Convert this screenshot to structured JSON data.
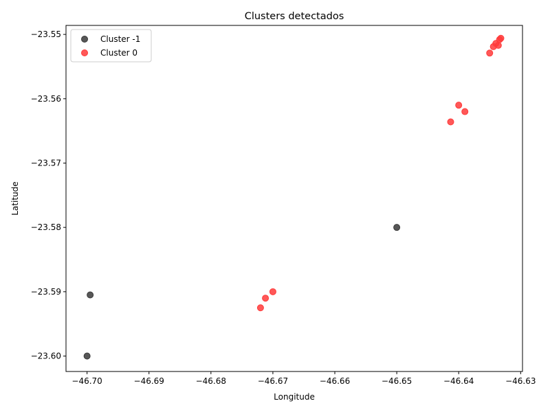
{
  "chart_data": {
    "type": "scatter",
    "title": "Clusters detectados",
    "xlabel": "Longitude",
    "ylabel": "Latitude",
    "xlim": [
      -46.7034,
      -46.6297
    ],
    "ylim": [
      -23.6024,
      -23.5486
    ],
    "xticks": [
      -46.7,
      -46.69,
      -46.68,
      -46.67,
      -46.66,
      -46.65,
      -46.64,
      -46.63
    ],
    "xtick_labels": [
      "−46.70",
      "−46.69",
      "−46.68",
      "−46.67",
      "−46.66",
      "−46.65",
      "−46.64",
      "−46.63"
    ],
    "yticks": [
      -23.55,
      -23.56,
      -23.57,
      -23.58,
      -23.59,
      -23.6
    ],
    "ytick_labels": [
      "−23.55",
      "−23.56",
      "−23.57",
      "−23.58",
      "−23.59",
      "−23.60"
    ],
    "grid": false,
    "legend_position": "top-left",
    "series": [
      {
        "name": "Cluster -1",
        "color": "#3a3a3a",
        "points": [
          {
            "x": -46.6995,
            "y": -23.5905
          },
          {
            "x": -46.7,
            "y": -23.6
          },
          {
            "x": -46.65,
            "y": -23.58
          }
        ]
      },
      {
        "name": "Cluster 0",
        "color": "#ff3b3b",
        "points": [
          {
            "x": -46.672,
            "y": -23.5925
          },
          {
            "x": -46.6712,
            "y": -23.591
          },
          {
            "x": -46.67,
            "y": -23.59
          },
          {
            "x": -46.6413,
            "y": -23.5636
          },
          {
            "x": -46.64,
            "y": -23.561
          },
          {
            "x": -46.639,
            "y": -23.562
          },
          {
            "x": -46.635,
            "y": -23.5529
          },
          {
            "x": -46.6344,
            "y": -23.5519
          },
          {
            "x": -46.634,
            "y": -23.5514
          },
          {
            "x": -46.6336,
            "y": -23.5517
          },
          {
            "x": -46.6334,
            "y": -23.5508
          },
          {
            "x": -46.6332,
            "y": -23.5506
          }
        ]
      }
    ]
  }
}
